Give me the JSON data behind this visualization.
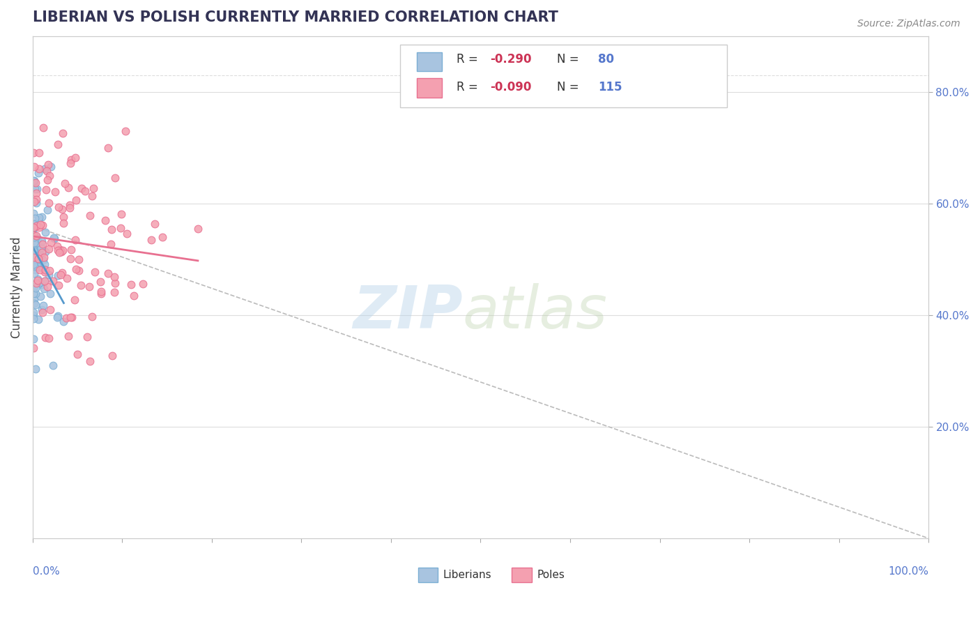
{
  "title": "LIBERIAN VS POLISH CURRENTLY MARRIED CORRELATION CHART",
  "source": "Source: ZipAtlas.com",
  "ylabel": "Currently Married",
  "right_yticks": [
    0.2,
    0.4,
    0.6,
    0.8
  ],
  "right_yticklabels": [
    "20.0%",
    "40.0%",
    "60.0%",
    "80.0%"
  ],
  "xmin": 0.0,
  "xmax": 1.0,
  "ymin": 0.0,
  "ymax": 0.9,
  "liberian_color": "#a8c4e0",
  "polish_color": "#f4a0b0",
  "liberian_edge": "#7bafd4",
  "polish_edge": "#e87090",
  "liberian_R": -0.29,
  "liberian_N": 80,
  "polish_R": -0.09,
  "polish_N": 115,
  "trend_liberian_color": "#5599cc",
  "trend_polish_color": "#e87090",
  "ref_line_color": "#bbbbbb",
  "background_color": "#ffffff",
  "grid_color": "#dddddd",
  "title_color": "#333355"
}
